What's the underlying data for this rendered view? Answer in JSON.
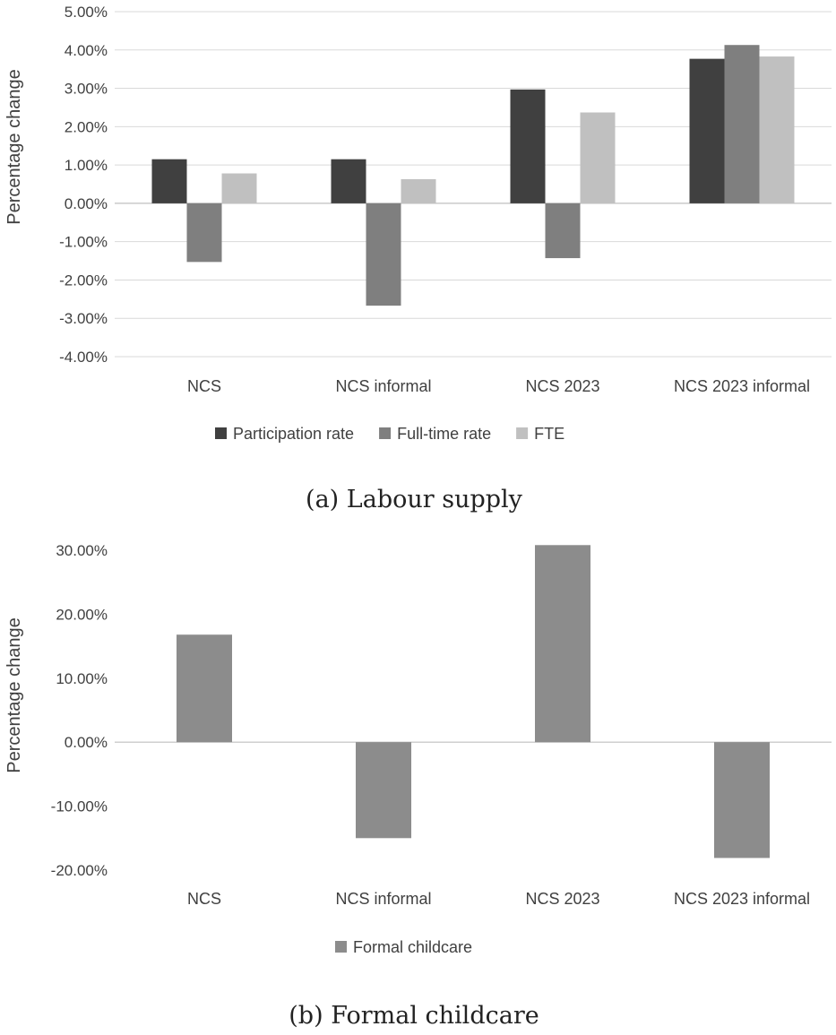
{
  "chart_data": [
    {
      "type": "bar",
      "caption": "(a) Labour supply",
      "ylabel": "Percentage change",
      "ylim": [
        -4,
        5
      ],
      "yticks": [
        5,
        4,
        3,
        2,
        1,
        0,
        -1,
        -2,
        -3,
        -4
      ],
      "ytick_labels": [
        "5.00%",
        "4.00%",
        "3.00%",
        "2.00%",
        "1.00%",
        "0.00%",
        "-1.00%",
        "-2.00%",
        "-3.00%",
        "-4.00%"
      ],
      "categories": [
        "NCS",
        "NCS informal",
        "NCS 2023",
        "NCS 2023 informal"
      ],
      "series": [
        {
          "name": "Participation rate",
          "color": "#404040",
          "values": [
            1.15,
            1.15,
            2.97,
            3.77
          ]
        },
        {
          "name": "Full-time rate",
          "color": "#7f7f7f",
          "values": [
            -1.53,
            -2.67,
            -1.43,
            4.13
          ]
        },
        {
          "name": "FTE",
          "color": "#c0c0c0",
          "values": [
            0.78,
            0.63,
            2.37,
            3.83
          ]
        }
      ],
      "grid": "horizontal",
      "legend_position": "bottom"
    },
    {
      "type": "bar",
      "caption": "(b) Formal childcare",
      "ylabel": "Percentage change",
      "ylim": [
        -20,
        30
      ],
      "yticks": [
        30,
        20,
        10,
        0,
        -10,
        -20
      ],
      "ytick_labels": [
        "30.00%",
        "20.00%",
        "10.00%",
        "0.00%",
        "-10.00%",
        "-20.00%"
      ],
      "categories": [
        "NCS",
        "NCS informal",
        "NCS 2023",
        "NCS 2023 informal"
      ],
      "series": [
        {
          "name": "Formal childcare",
          "color": "#8c8c8c",
          "values": [
            16.8,
            -15.0,
            30.8,
            -18.1
          ]
        }
      ],
      "grid": "none",
      "legend_position": "bottom"
    }
  ]
}
